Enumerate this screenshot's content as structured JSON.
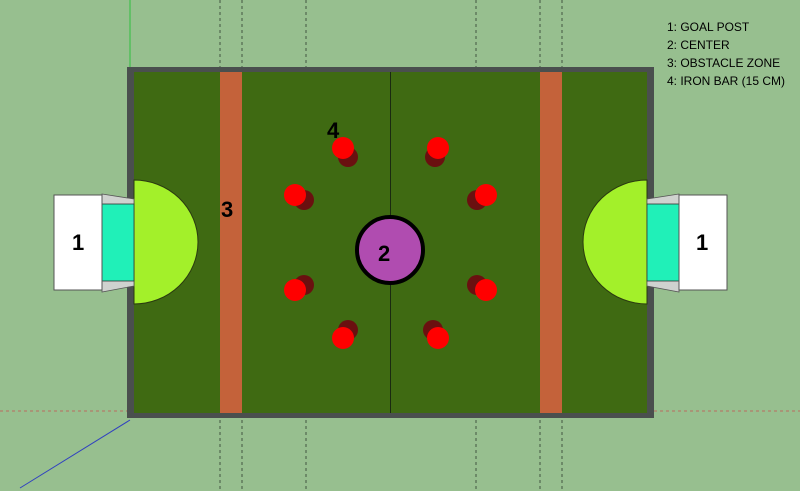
{
  "diagram": {
    "legend": [
      "1: GOAL POST",
      "2: CENTER",
      "3: OBSTACLE ZONE",
      "4: IRON BAR (15 CM)"
    ],
    "labels": {
      "goal_left": "1",
      "goal_right": "1",
      "center": "2",
      "obstacle_zone": "3",
      "iron_bar": "4"
    },
    "colors": {
      "background": "#97bf8f",
      "field": "#3f6a12",
      "border": "#4a4f4e",
      "obstacle_strip": "#c4623a",
      "goal_area": "#a3f02a",
      "goal_box": "#20f0b8",
      "goal_post": "#ffffff",
      "center_circle": "#b04cb0",
      "iron_bar": "#ff0000"
    }
  }
}
